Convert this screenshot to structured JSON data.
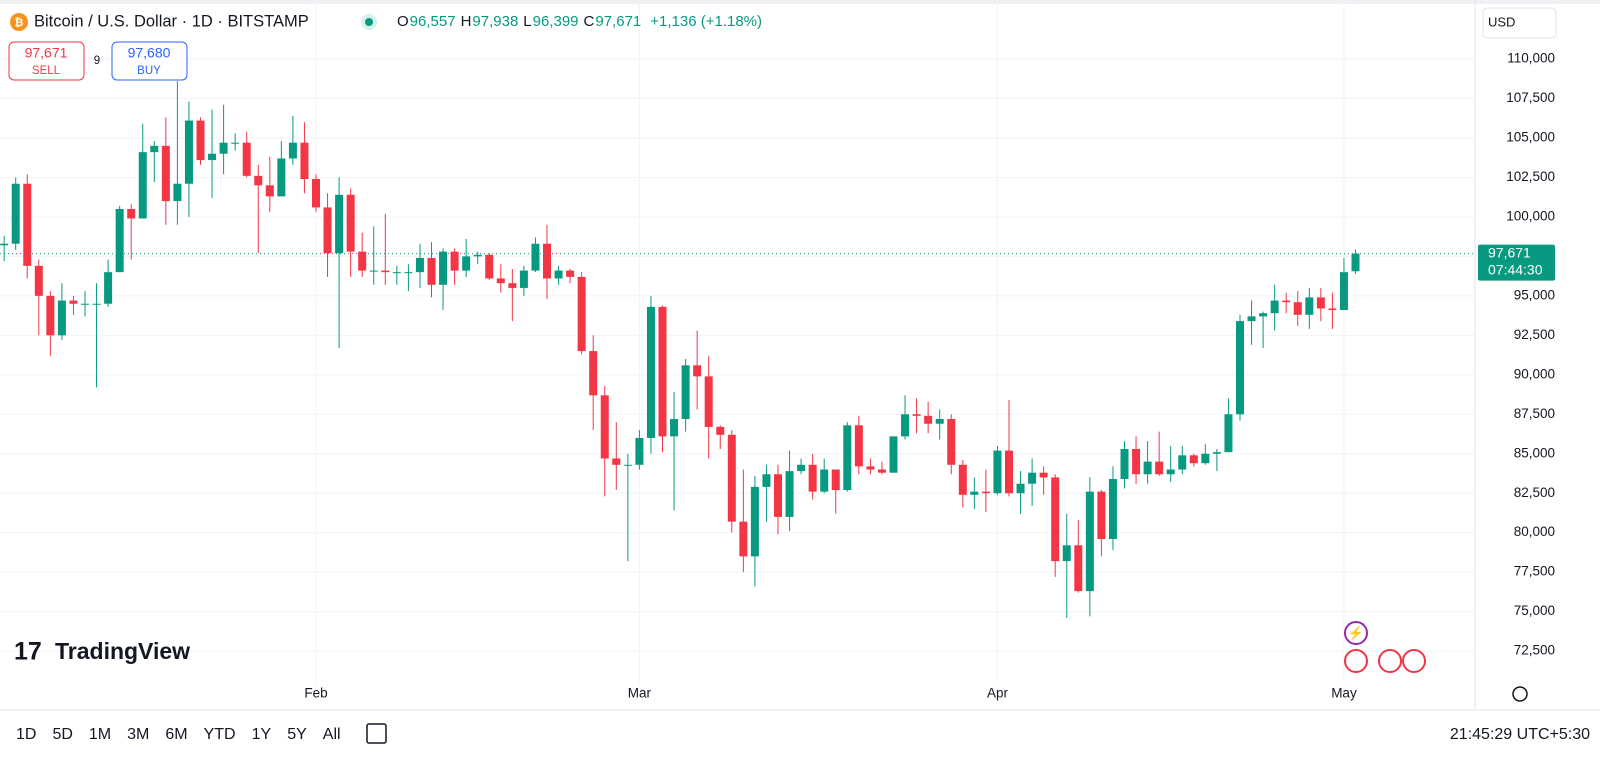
{
  "header": {
    "title": "Bitcoin / U.S. Dollar · 1D · BITSTAMP",
    "ohlc": [
      {
        "key": "O",
        "value": "96,557"
      },
      {
        "key": "H",
        "value": "97,938"
      },
      {
        "key": "L",
        "value": "96,399"
      },
      {
        "key": "C",
        "value": "97,671"
      }
    ],
    "change": "+1,136 (+1.18%)",
    "currency": "USD"
  },
  "trade": {
    "sell": {
      "price": "97,671",
      "label": "SELL"
    },
    "spread": "9",
    "buy": {
      "price": "97,680",
      "label": "BUY"
    }
  },
  "brand": "TradingView",
  "toolbar": {
    "ranges": [
      "1D",
      "5D",
      "1M",
      "3M",
      "6M",
      "YTD",
      "1Y",
      "5Y",
      "All"
    ],
    "clock": "21:45:29 UTC+5:30"
  },
  "chart_data": {
    "type": "candlestick",
    "categories": [
      null,
      null,
      null,
      null,
      null,
      null,
      null,
      null,
      null,
      null,
      null,
      null,
      null,
      null,
      null,
      null,
      null,
      null,
      null,
      null,
      null,
      null,
      null,
      null,
      null,
      null,
      null,
      "Feb",
      null,
      null,
      null,
      null,
      null,
      null,
      null,
      null,
      null,
      null,
      null,
      null,
      null,
      null,
      null,
      null,
      null,
      null,
      null,
      null,
      null,
      null,
      null,
      null,
      null,
      null,
      null,
      "Mar",
      null,
      null,
      null,
      null,
      null,
      null,
      null,
      null,
      null,
      null,
      null,
      null,
      null,
      null,
      null,
      null,
      null,
      null,
      null,
      null,
      null,
      null,
      null,
      null,
      null,
      null,
      null,
      null,
      null,
      null,
      "Apr",
      null,
      null,
      null,
      null,
      null,
      null,
      null,
      null,
      null,
      null,
      null,
      null,
      null,
      null,
      null,
      null,
      null,
      null,
      null,
      null,
      null,
      null,
      null,
      null,
      null,
      null,
      null,
      null,
      null,
      "May",
      null
    ],
    "open": [
      98200,
      98300,
      102100,
      96900,
      95000,
      92500,
      94700,
      94500,
      94500,
      94500,
      96500,
      100500,
      99900,
      104100,
      104500,
      101000,
      102100,
      106100,
      103600,
      104000,
      104700,
      104700,
      102600,
      102000,
      101300,
      103700,
      104700,
      102400,
      100600,
      97700,
      101400,
      97800,
      96600,
      96600,
      96500,
      96500,
      96500,
      97400,
      95700,
      97800,
      96600,
      97500,
      97600,
      96100,
      95800,
      95500,
      96600,
      98300,
      96100,
      96600,
      96200,
      91500,
      88700,
      84700,
      84300,
      84300,
      86000,
      94300,
      86100,
      87200,
      90600,
      89900,
      86700,
      86200,
      80700,
      78500,
      82900,
      83700,
      81000,
      83900,
      84300,
      82600,
      84000,
      82700,
      86800,
      84200,
      84000,
      83800,
      86100,
      87500,
      87400,
      86900,
      87200,
      84300,
      82400,
      82600,
      82500,
      85200,
      82500,
      83100,
      83800,
      83500,
      78200,
      79200,
      76300,
      82600,
      79600,
      83400,
      85300,
      83700,
      84500,
      83700,
      84000,
      84900,
      84400,
      85000,
      85100,
      87500,
      93400,
      93700,
      93900,
      94700,
      94600,
      93800,
      94900,
      94200,
      94100,
      96557
    ],
    "high": [
      98800,
      102500,
      102700,
      97300,
      95300,
      95800,
      95000,
      95300,
      95800,
      97300,
      100700,
      100800,
      105900,
      104800,
      106300,
      108600,
      107300,
      106300,
      106800,
      107100,
      105300,
      105400,
      103300,
      103800,
      104800,
      106400,
      106000,
      102700,
      101500,
      102500,
      101800,
      99000,
      99400,
      100200,
      96900,
      97000,
      98300,
      98400,
      98000,
      98000,
      98600,
      97800,
      97700,
      97000,
      96700,
      96900,
      98700,
      99500,
      96900,
      96700,
      96500,
      92500,
      89300,
      87000,
      85000,
      86500,
      95000,
      94400,
      88900,
      91000,
      92800,
      91200,
      86800,
      86500,
      84000,
      83600,
      84300,
      84300,
      85200,
      84700,
      85000,
      84700,
      84000,
      87000,
      87400,
      84700,
      84500,
      86100,
      88700,
      88500,
      88300,
      87800,
      87500,
      84600,
      83500,
      84000,
      85500,
      88400,
      83900,
      84700,
      84200,
      83700,
      81200,
      80800,
      83500,
      82700,
      84200,
      85800,
      86100,
      85800,
      86400,
      85500,
      85500,
      85000,
      85600,
      85300,
      88500,
      93800,
      94700,
      94000,
      95700,
      95200,
      95300,
      95500,
      95500,
      95200,
      97400,
      97938
    ],
    "low": [
      97200,
      97900,
      96100,
      92500,
      91200,
      92200,
      93800,
      93700,
      89200,
      94300,
      96500,
      97300,
      99900,
      102200,
      99500,
      99500,
      100000,
      103300,
      101200,
      102700,
      104200,
      102500,
      97700,
      100300,
      101300,
      103300,
      101500,
      100300,
      96200,
      91700,
      96200,
      96200,
      95700,
      95700,
      95700,
      95300,
      95500,
      94900,
      94100,
      95700,
      96200,
      97000,
      96000,
      95200,
      93400,
      95000,
      96500,
      94800,
      95700,
      95800,
      91300,
      86500,
      82300,
      82700,
      78200,
      84000,
      85000,
      85100,
      81400,
      86400,
      87800,
      84700,
      85300,
      80000,
      77500,
      76600,
      80700,
      79900,
      80100,
      83700,
      82100,
      82500,
      81200,
      82600,
      83700,
      83700,
      83700,
      83800,
      85900,
      86300,
      86300,
      85900,
      83700,
      81600,
      81500,
      81300,
      82400,
      82300,
      81200,
      81700,
      82400,
      77200,
      74600,
      76200,
      74700,
      78500,
      78900,
      82800,
      83100,
      83100,
      83600,
      83200,
      83700,
      84200,
      84300,
      83900,
      85100,
      87100,
      91900,
      91700,
      92800,
      93900,
      93100,
      92900,
      93400,
      92900,
      94100,
      96399
    ],
    "close": [
      98300,
      102100,
      96900,
      95000,
      92500,
      94700,
      94500,
      94500,
      94500,
      96500,
      100500,
      99900,
      104100,
      104500,
      101000,
      102100,
      106100,
      103600,
      104000,
      104700,
      104700,
      102600,
      102000,
      101300,
      103700,
      104700,
      102400,
      100600,
      97700,
      101400,
      97800,
      96600,
      96600,
      96500,
      96500,
      96500,
      97400,
      95700,
      97800,
      96600,
      97500,
      97600,
      96100,
      95800,
      95500,
      96600,
      98300,
      96100,
      96600,
      96200,
      91500,
      88700,
      84700,
      84300,
      84300,
      86000,
      94300,
      86100,
      87200,
      90600,
      89900,
      86700,
      86200,
      80700,
      78500,
      82900,
      83700,
      81000,
      83900,
      84300,
      82600,
      84000,
      82700,
      86800,
      84200,
      84000,
      83800,
      86100,
      87500,
      87400,
      86900,
      87200,
      84300,
      82400,
      82600,
      82500,
      85200,
      82500,
      83100,
      83800,
      83500,
      78200,
      79200,
      76300,
      82600,
      79600,
      83400,
      85300,
      83700,
      84500,
      83700,
      84000,
      84900,
      84400,
      85000,
      85100,
      87500,
      93400,
      93700,
      93900,
      94700,
      94600,
      93800,
      94900,
      94200,
      94100,
      96500,
      97671
    ],
    "up_color": "#089981",
    "down_color": "#f23645",
    "ylim": [
      70480,
      113420
    ],
    "yticks": [
      {
        "value": 72500,
        "label": "72,500"
      },
      {
        "value": 75000,
        "label": "75,000"
      },
      {
        "value": 77500,
        "label": "77,500"
      },
      {
        "value": 80000,
        "label": "80,000"
      },
      {
        "value": 82500,
        "label": "82,500"
      },
      {
        "value": 85000,
        "label": "85,000"
      },
      {
        "value": 87500,
        "label": "87,500"
      },
      {
        "value": 90000,
        "label": "90,000"
      },
      {
        "value": 92500,
        "label": "92,500"
      },
      {
        "value": 95000,
        "label": "95,000"
      },
      {
        "value": 97500,
        "label": "97,500"
      },
      {
        "value": 100000,
        "label": "100,000"
      },
      {
        "value": 102500,
        "label": "102,500"
      },
      {
        "value": 105000,
        "label": "105,000"
      },
      {
        "value": 107500,
        "label": "107,500"
      },
      {
        "value": 110000,
        "label": "110,000"
      }
    ],
    "last_price_label": "97,671",
    "countdown": "07:44:30",
    "grid": true
  }
}
